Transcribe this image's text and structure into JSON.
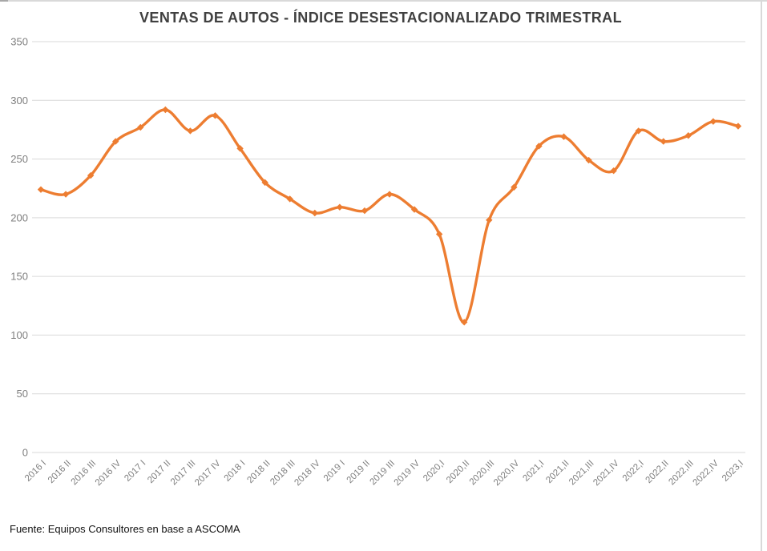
{
  "footer": {
    "source": "Fuente: Equipos Consultores en base a ASCOMA"
  },
  "colors": {
    "line": "#ED7D31",
    "grid": "#D9D9D9",
    "axis_text": "#7F7F7F",
    "title_text": "#404040",
    "border": "#D9D9D9"
  },
  "chart_data": {
    "type": "line",
    "title": "VENTAS DE AUTOS - ÍNDICE DESESTACIONALIZADO TRIMESTRAL",
    "smooth": true,
    "marker": "diamond",
    "legend": "none",
    "grid": "horizontal",
    "xlabel": "",
    "ylabel": "",
    "ylim": [
      0,
      350
    ],
    "yticks": [
      350,
      300,
      250,
      200,
      150,
      100,
      50,
      0
    ],
    "categories": [
      "2016 I",
      "2016 II",
      "2016 III",
      "2016 IV",
      "2017 I",
      "2017 II",
      "2017 III",
      "2017 IV",
      "2018 I",
      "2018 II",
      "2018 III",
      "2018 IV",
      "2019 I",
      "2019 II",
      "2019 III",
      "2019 IV",
      "2020,I",
      "2020,II",
      "2020,III",
      "2020,IV",
      "2021,I",
      "2021,II",
      "2021,III",
      "2021,IV",
      "2022,I",
      "2022,II",
      "2022,III",
      "2022,IV",
      "2023,I"
    ],
    "values": [
      224,
      220,
      236,
      265,
      277,
      292,
      274,
      287,
      259,
      230,
      216,
      204,
      209,
      206,
      220,
      207,
      186,
      111,
      198,
      226,
      261,
      269,
      249,
      240,
      274,
      265,
      270,
      282,
      278
    ]
  }
}
